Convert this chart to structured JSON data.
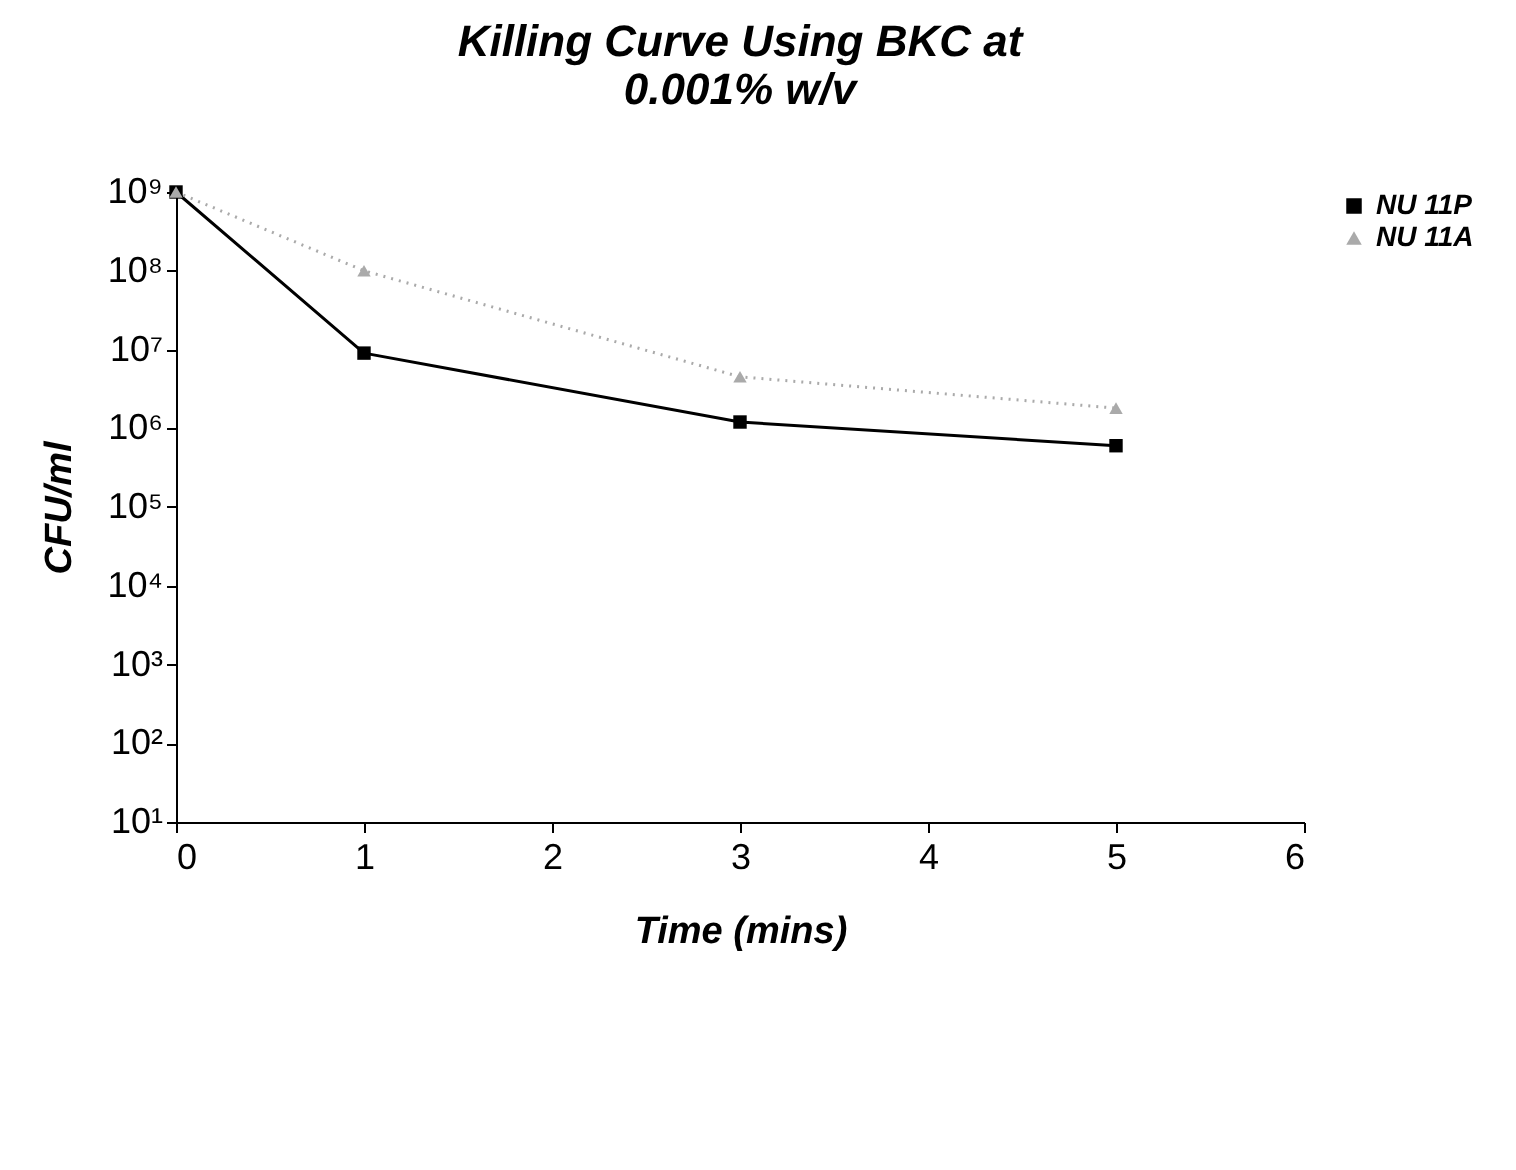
{
  "chart_data": {
    "type": "line",
    "title": "Killing Curve Using BKC at\n0.001% w/v",
    "xlabel": "Time (mins)",
    "ylabel": "CFU/ml",
    "x": [
      0,
      1,
      3,
      5
    ],
    "series": [
      {
        "name": "NU 11P",
        "color": "#000000",
        "marker": "square",
        "line_style": "solid",
        "values": [
          1000000000,
          9000000,
          1200000,
          600000
        ]
      },
      {
        "name": "NU 11A",
        "color": "#aaaaaa",
        "marker": "triangle",
        "line_style": "dotted",
        "values": [
          1000000000,
          100000000,
          4500000,
          1800000
        ]
      }
    ],
    "log": "y",
    "xlim": [
      0,
      6
    ],
    "xticks": [
      0,
      1,
      2,
      3,
      4,
      5,
      6
    ],
    "ylim": [
      10,
      1000000000
    ],
    "yticks": [
      {
        "value": 10,
        "label": "10¹"
      },
      {
        "value": 100,
        "label": "10²"
      },
      {
        "value": 1000,
        "label": "10³"
      },
      {
        "value": 10000,
        "label": "10⁴"
      },
      {
        "value": 100000,
        "label": "10⁵"
      },
      {
        "value": 1000000,
        "label": "10⁶"
      },
      {
        "value": 10000000,
        "label": "10⁷"
      },
      {
        "value": 100000000,
        "label": "10⁸"
      },
      {
        "value": 1000000000,
        "label": "10⁹"
      }
    ],
    "grid": false,
    "legend": "top right"
  }
}
